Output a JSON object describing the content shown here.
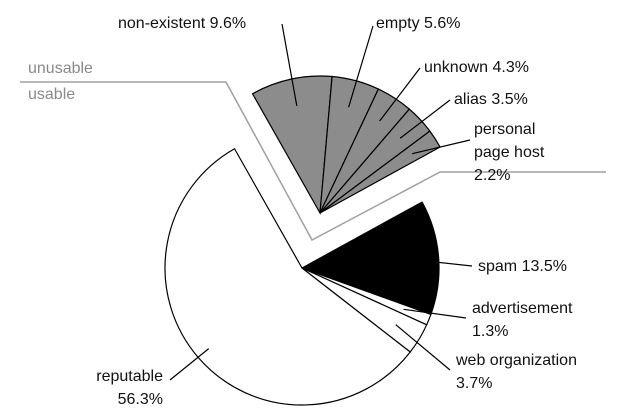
{
  "chart_data": {
    "type": "pie",
    "categories": [
      "non-existent",
      "empty",
      "unknown",
      "alias",
      "personal page host",
      "spam",
      "advertisement",
      "web organization",
      "reputable"
    ],
    "values": [
      9.6,
      5.6,
      4.3,
      3.5,
      2.2,
      13.5,
      1.3,
      3.7,
      56.3
    ],
    "value_labels": [
      "9.6%",
      "5.6%",
      "4.3%",
      "3.5%",
      "2.2%",
      "13.5%",
      "1.3%",
      "3.7%",
      "56.3%"
    ],
    "colors": [
      "#8c8c8c",
      "#8c8c8c",
      "#8c8c8c",
      "#8c8c8c",
      "#8c8c8c",
      "#000000",
      "#ffffff",
      "#ffffff",
      "#ffffff"
    ],
    "exploded": [
      true,
      true,
      true,
      true,
      true,
      false,
      false,
      false,
      false
    ],
    "group_labels": [
      "unusable",
      "usable"
    ]
  }
}
